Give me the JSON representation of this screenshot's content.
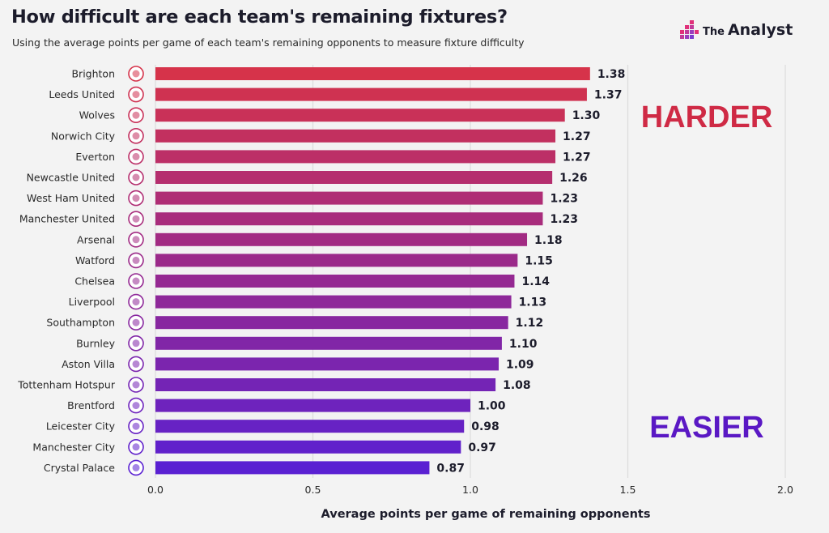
{
  "header": {
    "title": "How difficult are each team's remaining fixtures?",
    "subtitle": "Using the average points per game of each team's remaining opponents to measure fixture difficulty"
  },
  "brand": {
    "the": "The",
    "name": "Analyst"
  },
  "chart_data": {
    "type": "bar",
    "orientation": "horizontal",
    "categories": [
      "Brighton",
      "Leeds United",
      "Wolves",
      "Norwich City",
      "Everton",
      "Newcastle United",
      "West Ham United",
      "Manchester United",
      "Arsenal",
      "Watford",
      "Chelsea",
      "Liverpool",
      "Southampton",
      "Burnley",
      "Aston Villa",
      "Tottenham Hotspur",
      "Brentford",
      "Leicester City",
      "Manchester City",
      "Crystal Palace"
    ],
    "values": [
      1.38,
      1.37,
      1.3,
      1.27,
      1.27,
      1.26,
      1.23,
      1.23,
      1.18,
      1.15,
      1.14,
      1.13,
      1.12,
      1.1,
      1.09,
      1.08,
      1.0,
      0.98,
      0.97,
      0.87
    ],
    "value_labels": [
      "1.38",
      "1.37",
      "1.30",
      "1.27",
      "1.27",
      "1.26",
      "1.23",
      "1.23",
      "1.18",
      "1.15",
      "1.14",
      "1.13",
      "1.12",
      "1.10",
      "1.09",
      "1.08",
      "1.00",
      "0.98",
      "0.97",
      "0.87"
    ],
    "xlabel": "Average points per game of remaining opponents",
    "xlim": [
      0,
      2.0
    ],
    "xticks": [
      0,
      0.5,
      1.0,
      1.5,
      2.0
    ],
    "xtick_labels": [
      "0.0",
      "0.5",
      "1.0",
      "1.5",
      "2.0"
    ],
    "grid": true,
    "annotations": [
      {
        "text": "HARDER",
        "color": "#cf2a45"
      },
      {
        "text": "EASIER",
        "color": "#5a18c4"
      }
    ],
    "colors": {
      "top": "#d6334a",
      "bottom": "#5a20d2"
    }
  }
}
